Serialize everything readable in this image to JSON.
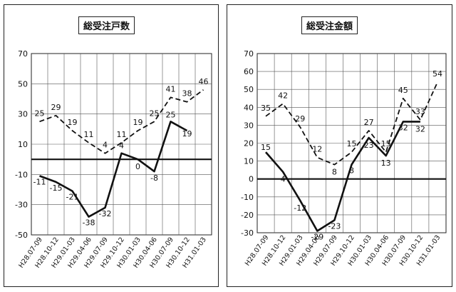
{
  "chart_data": [
    {
      "type": "line",
      "title": "総受注戸数",
      "categories": [
        "H28.07-09",
        "H28.10-12",
        "H29.01-03",
        "H29.04-06",
        "H29.07-09",
        "H29.10-12",
        "H30.01-03",
        "H30.04-06",
        "H30.07-09",
        "H30.10-12",
        "H31.01-03"
      ],
      "ylim": [
        -50,
        70
      ],
      "yticks": [
        -50,
        -30,
        -10,
        10,
        30,
        50,
        70
      ],
      "zero_line": true,
      "grid": true,
      "series": [
        {
          "style": "dashed",
          "values": [
            25,
            29,
            19,
            11,
            4,
            11,
            19,
            25,
            41,
            38,
            46
          ]
        },
        {
          "style": "solid",
          "values": [
            -11,
            -15,
            -21,
            -38,
            -32,
            4,
            0,
            -8,
            25,
            19,
            null
          ]
        }
      ]
    },
    {
      "type": "line",
      "title": "総受注金額",
      "categories": [
        "H28.07-09",
        "H28.10-12",
        "H29.01-03",
        "H29.04-06",
        "H29.07-09",
        "H29.10-12",
        "H30.01-03",
        "H30.04-06",
        "H30.07-09",
        "H30.10-12",
        "H31.01-03"
      ],
      "ylim": [
        -30,
        70
      ],
      "yticks": [
        -30,
        -20,
        -10,
        0,
        10,
        20,
        30,
        40,
        50,
        60,
        70
      ],
      "zero_line": true,
      "grid": true,
      "series": [
        {
          "style": "dashed",
          "values": [
            35,
            42,
            29,
            12,
            8,
            15,
            27,
            15,
            45,
            33,
            54
          ]
        },
        {
          "style": "solid",
          "values": [
            15,
            4,
            -12,
            -29,
            -23,
            8,
            23,
            13,
            32,
            32,
            null
          ]
        }
      ]
    }
  ]
}
